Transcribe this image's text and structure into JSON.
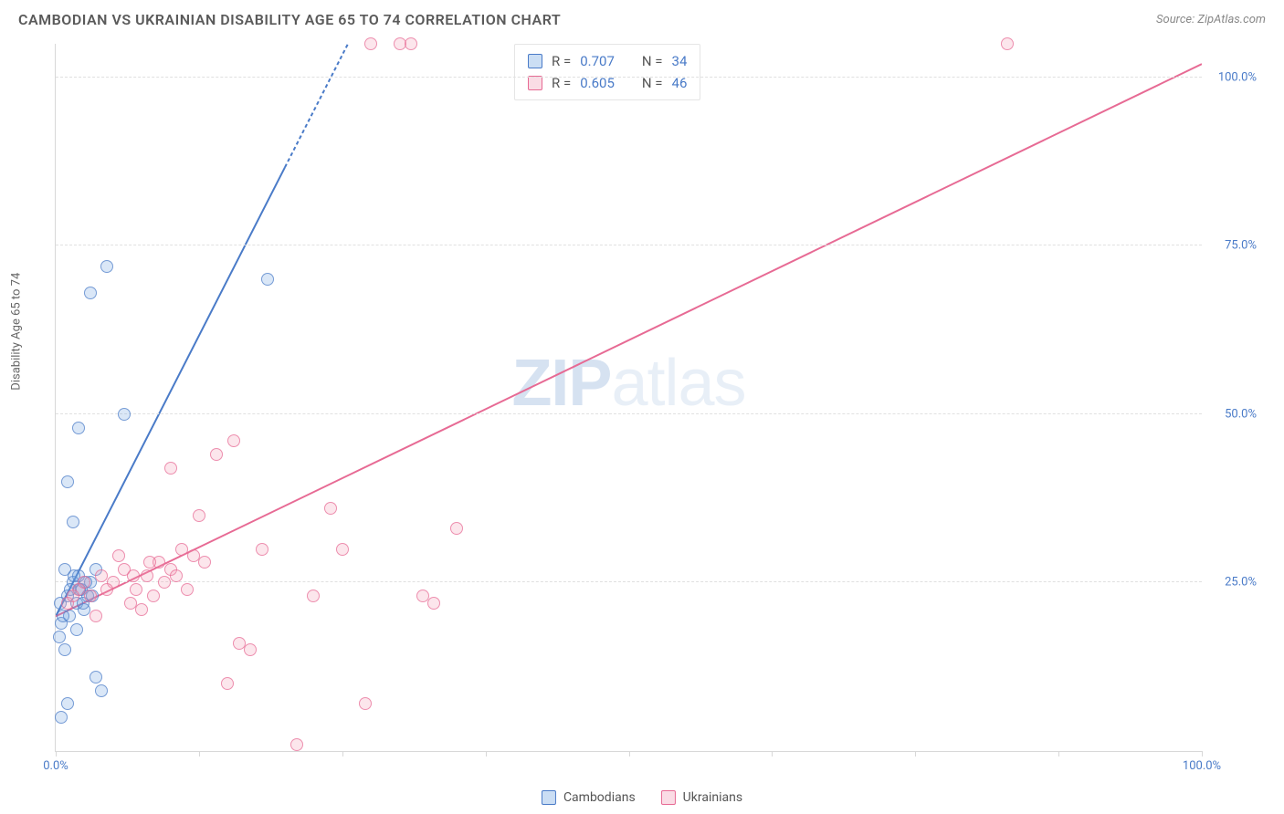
{
  "header": {
    "title": "CAMBODIAN VS UKRAINIAN DISABILITY AGE 65 TO 74 CORRELATION CHART",
    "source": "Source: ZipAtlas.com"
  },
  "chart": {
    "type": "scatter",
    "ylabel": "Disability Age 65 to 74",
    "xlim": [
      0,
      100
    ],
    "ylim": [
      0,
      105
    ],
    "xtick_positions": [
      0,
      12.5,
      25,
      37.5,
      50,
      62.5,
      75,
      87.5,
      100
    ],
    "xtick_labels": {
      "0": "0.0%",
      "100": "100.0%"
    },
    "ytick_positions": [
      25,
      50,
      75,
      100
    ],
    "ytick_labels": {
      "25": "25.0%",
      "50": "50.0%",
      "75": "75.0%",
      "100": "100.0%"
    },
    "grid_color": "#e0e0e0",
    "axis_color": "#d8d8d8",
    "background_color": "#ffffff",
    "marker_radius": 7,
    "marker_fill_opacity": 0.25,
    "marker_stroke_opacity": 0.7,
    "regline_width": 2,
    "watermark": "ZIPatlas",
    "series": [
      {
        "name": "Cambodians",
        "color": "#6aa0e0",
        "stroke": "#4a7bc8",
        "R": "0.707",
        "N": "34",
        "regression": {
          "x1": 0,
          "y1": 20,
          "x2": 25.5,
          "y2": 105,
          "dashed_from_x": 20
        },
        "points": [
          [
            0.3,
            17
          ],
          [
            0.5,
            19
          ],
          [
            0.8,
            15
          ],
          [
            1.0,
            23
          ],
          [
            1.2,
            20
          ],
          [
            1.5,
            25
          ],
          [
            1.8,
            22
          ],
          [
            2.0,
            26
          ],
          [
            2.2,
            24
          ],
          [
            2.5,
            21
          ],
          [
            2.8,
            23
          ],
          [
            3.0,
            25
          ],
          [
            3.5,
            27
          ],
          [
            1.5,
            34
          ],
          [
            1.0,
            40
          ],
          [
            2.0,
            48
          ],
          [
            3.5,
            11
          ],
          [
            4.0,
            9
          ],
          [
            1.0,
            7
          ],
          [
            0.5,
            5
          ],
          [
            6.0,
            50
          ],
          [
            3.0,
            68
          ],
          [
            4.5,
            72
          ],
          [
            18.5,
            70
          ],
          [
            0.8,
            27
          ],
          [
            1.3,
            24
          ],
          [
            2.4,
            22
          ],
          [
            0.6,
            20
          ],
          [
            1.8,
            18
          ],
          [
            2.6,
            25
          ],
          [
            3.2,
            23
          ],
          [
            0.4,
            22
          ],
          [
            1.6,
            26
          ],
          [
            2.1,
            24
          ]
        ]
      },
      {
        "name": "Ukrainians",
        "color": "#f29ab5",
        "stroke": "#e76a94",
        "R": "0.605",
        "N": "46",
        "regression": {
          "x1": 0,
          "y1": 20,
          "x2": 100,
          "y2": 102,
          "dashed_from_x": 100
        },
        "points": [
          [
            1.0,
            22
          ],
          [
            2.0,
            24
          ],
          [
            3.0,
            23
          ],
          [
            4.0,
            26
          ],
          [
            5.0,
            25
          ],
          [
            6.0,
            27
          ],
          [
            7.0,
            24
          ],
          [
            8.0,
            26
          ],
          [
            9.0,
            28
          ],
          [
            10.0,
            27
          ],
          [
            11.0,
            30
          ],
          [
            12.0,
            29
          ],
          [
            6.5,
            22
          ],
          [
            8.5,
            23
          ],
          [
            10.5,
            26
          ],
          [
            5.5,
            29
          ],
          [
            13.0,
            28
          ],
          [
            14.0,
            44
          ],
          [
            15.5,
            46
          ],
          [
            18.0,
            30
          ],
          [
            16.0,
            16
          ],
          [
            17.0,
            15
          ],
          [
            21.0,
            1
          ],
          [
            22.5,
            23
          ],
          [
            24.0,
            36
          ],
          [
            25.0,
            30
          ],
          [
            27.0,
            7
          ],
          [
            32.0,
            23
          ],
          [
            33.0,
            22
          ],
          [
            35.0,
            33
          ],
          [
            7.5,
            21
          ],
          [
            9.5,
            25
          ],
          [
            11.5,
            24
          ],
          [
            3.5,
            20
          ],
          [
            4.5,
            24
          ],
          [
            12.5,
            35
          ],
          [
            10.0,
            42
          ],
          [
            15.0,
            10
          ],
          [
            27.5,
            105
          ],
          [
            30.0,
            105
          ],
          [
            31.0,
            105
          ],
          [
            83.0,
            105
          ],
          [
            2.5,
            25
          ],
          [
            1.5,
            23
          ],
          [
            6.8,
            26
          ],
          [
            8.2,
            28
          ]
        ]
      }
    ]
  },
  "legend": {
    "items": [
      {
        "label": "Cambodians",
        "swatch_fill": "rgba(106,160,224,0.35)",
        "swatch_stroke": "#4a7bc8"
      },
      {
        "label": "Ukrainians",
        "swatch_fill": "rgba(242,154,181,0.35)",
        "swatch_stroke": "#e76a94"
      }
    ]
  },
  "stats": {
    "label_R": "R =",
    "label_N": "N ="
  }
}
